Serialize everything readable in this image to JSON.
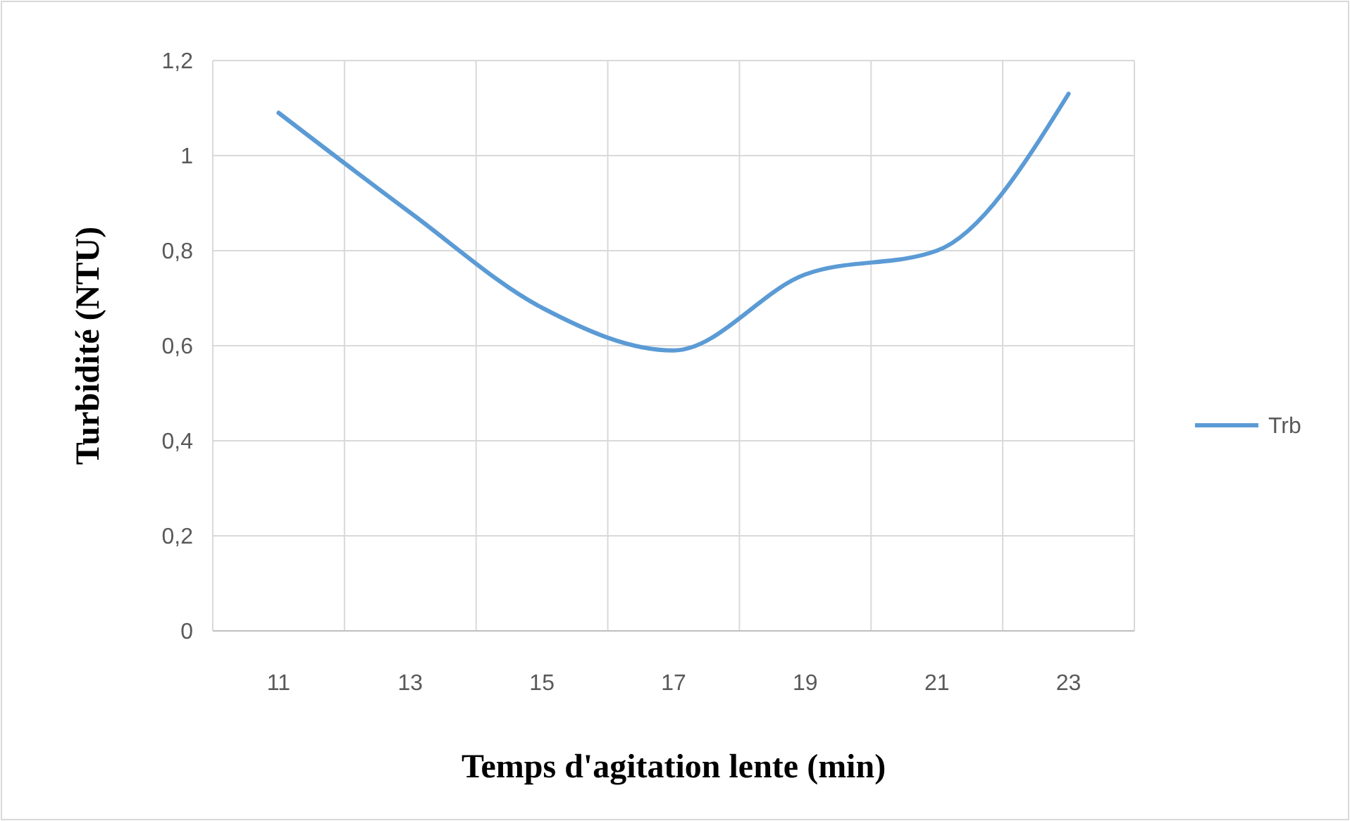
{
  "chart_data": {
    "type": "line",
    "xlabel": "Temps d'agitation lente (min)",
    "ylabel": "Turbidité (NTU)",
    "categories": [
      "11",
      "13",
      "15",
      "17",
      "19",
      "21",
      "23"
    ],
    "series": [
      {
        "name": "Trb",
        "color": "#5b9bd5",
        "values": [
          1.09,
          0.88,
          0.68,
          0.59,
          0.75,
          0.8,
          1.13
        ]
      }
    ],
    "ylim": [
      0,
      1.2
    ],
    "yticks": [
      0,
      {
        "value": 0.2,
        "label": "0,2"
      },
      {
        "value": 0.4,
        "label": "0,4"
      },
      {
        "value": 0.6,
        "label": "0,6"
      },
      {
        "value": 0.8,
        "label": "0,8"
      },
      1,
      {
        "value": 1.2,
        "label": "1,2"
      }
    ],
    "grid": true,
    "legend": "right",
    "marker": "none",
    "line_style": "solid"
  }
}
